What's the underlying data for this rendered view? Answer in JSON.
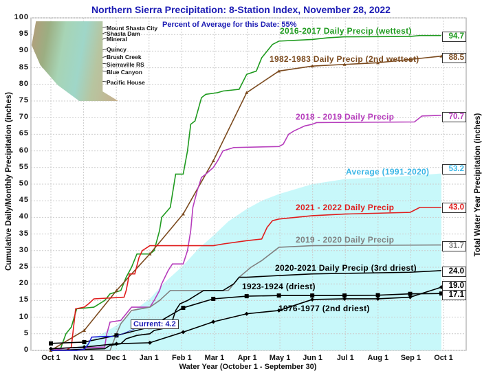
{
  "chart_data": {
    "type": "line",
    "title": "Northern Sierra Precipitation: 8-Station Index, November 28, 2022",
    "subtitle": "Percent of Average for this Date: 55%",
    "xlabel": "Water Year (October 1 - September 30)",
    "ylabel": "Cumulative Daily/Monthly Precipitation (inches)",
    "ylabel_right": "Total Water Year Precipitation (inches)",
    "x_ticks": [
      "Oct 1",
      "Nov 1",
      "Dec 1",
      "Jan 1",
      "Feb 1",
      "Mar 1",
      "Apr 1",
      "May 1",
      "Jun 1",
      "Jul 1",
      "Aug 1",
      "Sep 1",
      "Oct 1"
    ],
    "y_ticks": [
      0,
      5,
      10,
      15,
      20,
      25,
      30,
      35,
      40,
      45,
      50,
      55,
      60,
      65,
      70,
      75,
      80,
      85,
      90,
      95,
      100
    ],
    "ylim": [
      0,
      100
    ],
    "grid": true,
    "map_stations": [
      "Mount Shasta City",
      "Shasta Dam",
      "Mineral",
      "Quincy",
      "Brush Creek",
      "Sierraville RS",
      "Blue Canyon",
      "Pacific House"
    ],
    "current_label": "Current: 4.2",
    "series": [
      {
        "name": "Average (1991-2020)",
        "color": "#c8f8fa",
        "label_color": "#3ab6e6",
        "fill": true,
        "total": "53.2",
        "points": [
          [
            "10-01",
            0
          ],
          [
            "10-20",
            0.3
          ],
          [
            "11-01",
            2
          ],
          [
            "11-15",
            4.5
          ],
          [
            "12-01",
            7.5
          ],
          [
            "12-15",
            11.5
          ],
          [
            "01-01",
            15.5
          ],
          [
            "01-15",
            20.5
          ],
          [
            "02-01",
            25.5
          ],
          [
            "02-15",
            30.5
          ],
          [
            "03-01",
            34.5
          ],
          [
            "03-15",
            38.8
          ],
          [
            "04-01",
            42.5
          ],
          [
            "04-15",
            45
          ],
          [
            "05-01",
            47
          ],
          [
            "06-01",
            50
          ],
          [
            "07-01",
            51.5
          ],
          [
            "08-01",
            52
          ],
          [
            "09-01",
            52.5
          ],
          [
            "09-30",
            53.2
          ]
        ]
      },
      {
        "name": "2016-2017 Daily Precip (wettest)",
        "color": "#1e9a1e",
        "total": "94.7",
        "points": [
          [
            "10-01",
            0
          ],
          [
            "10-10",
            0.5
          ],
          [
            "10-15",
            5
          ],
          [
            "10-20",
            7
          ],
          [
            "10-25",
            12.5
          ],
          [
            "11-10",
            13
          ],
          [
            "11-20",
            15
          ],
          [
            "11-25",
            17
          ],
          [
            "12-05",
            18
          ],
          [
            "12-10",
            22
          ],
          [
            "12-15",
            25
          ],
          [
            "12-20",
            29
          ],
          [
            "01-01",
            29
          ],
          [
            "01-05",
            30
          ],
          [
            "01-10",
            36
          ],
          [
            "01-12",
            40
          ],
          [
            "01-20",
            43
          ],
          [
            "01-25",
            53
          ],
          [
            "02-01",
            53
          ],
          [
            "02-05",
            60
          ],
          [
            "02-08",
            68
          ],
          [
            "02-12",
            69
          ],
          [
            "02-18",
            76
          ],
          [
            "02-22",
            77
          ],
          [
            "03-05",
            77.5
          ],
          [
            "03-10",
            78
          ],
          [
            "03-25",
            78.5
          ],
          [
            "04-01",
            83
          ],
          [
            "04-10",
            84
          ],
          [
            "04-15",
            88
          ],
          [
            "04-20",
            90
          ],
          [
            "04-25",
            92
          ],
          [
            "05-01",
            93
          ],
          [
            "06-01",
            93.5
          ],
          [
            "06-15",
            94
          ],
          [
            "07-01",
            94.3
          ],
          [
            "09-01",
            94.4
          ],
          [
            "09-10",
            94.7
          ],
          [
            "09-30",
            94.7
          ]
        ]
      },
      {
        "name": "1982-1983 Daily Precip (2nd wettest)",
        "color": "#7b4a1e",
        "marker": "triangle",
        "total": "88.5",
        "points": [
          [
            "10-01",
            0
          ],
          [
            "11-01",
            6
          ],
          [
            "12-01",
            18
          ],
          [
            "01-01",
            29
          ],
          [
            "02-01",
            41
          ],
          [
            "03-01",
            57
          ],
          [
            "04-01",
            77.5
          ],
          [
            "05-01",
            84
          ],
          [
            "06-01",
            85.5
          ],
          [
            "07-01",
            86
          ],
          [
            "08-01",
            86.5
          ],
          [
            "09-01",
            87.5
          ],
          [
            "09-30",
            88.5
          ]
        ]
      },
      {
        "name": "2018 - 2019 Daily Precip",
        "color": "#b63cbc",
        "total": "70.7",
        "points": [
          [
            "10-01",
            0
          ],
          [
            "10-15",
            0.7
          ],
          [
            "11-20",
            1
          ],
          [
            "11-22",
            5
          ],
          [
            "11-25",
            8.5
          ],
          [
            "12-05",
            9
          ],
          [
            "12-10",
            11
          ],
          [
            "12-15",
            13
          ],
          [
            "01-01",
            13
          ],
          [
            "01-05",
            15
          ],
          [
            "01-10",
            18
          ],
          [
            "01-12",
            20
          ],
          [
            "01-18",
            24
          ],
          [
            "01-22",
            26
          ],
          [
            "02-01",
            26
          ],
          [
            "02-05",
            30
          ],
          [
            "02-08",
            36
          ],
          [
            "02-10",
            43
          ],
          [
            "02-14",
            48
          ],
          [
            "02-18",
            52
          ],
          [
            "02-22",
            53
          ],
          [
            "03-01",
            55
          ],
          [
            "03-05",
            57
          ],
          [
            "03-10",
            60
          ],
          [
            "03-20",
            61
          ],
          [
            "05-01",
            61.3
          ],
          [
            "05-05",
            62
          ],
          [
            "05-10",
            65
          ],
          [
            "05-15",
            66
          ],
          [
            "05-25",
            67.5
          ],
          [
            "06-01",
            68
          ],
          [
            "06-05",
            68.5
          ],
          [
            "09-05",
            68.7
          ],
          [
            "09-12",
            70.5
          ],
          [
            "09-30",
            70.7
          ]
        ]
      },
      {
        "name": "2021 - 2022 Daily Precip",
        "color": "#e01c1c",
        "total": "43.0",
        "points": [
          [
            "10-01",
            0
          ],
          [
            "10-15",
            0
          ],
          [
            "10-20",
            1
          ],
          [
            "10-24",
            12.5
          ],
          [
            "11-01",
            13
          ],
          [
            "11-05",
            14
          ],
          [
            "11-10",
            15.5
          ],
          [
            "12-08",
            16
          ],
          [
            "12-10",
            18
          ],
          [
            "12-13",
            23
          ],
          [
            "12-18",
            23
          ],
          [
            "12-22",
            28
          ],
          [
            "12-25",
            30
          ],
          [
            "01-01",
            31.5
          ],
          [
            "03-01",
            31.5
          ],
          [
            "03-10",
            32
          ],
          [
            "04-01",
            33
          ],
          [
            "04-15",
            33.5
          ],
          [
            "04-20",
            37
          ],
          [
            "04-25",
            39
          ],
          [
            "05-01",
            39.5
          ],
          [
            "06-01",
            40.5
          ],
          [
            "07-01",
            41
          ],
          [
            "09-01",
            41.5
          ],
          [
            "09-10",
            43
          ],
          [
            "09-30",
            43
          ]
        ]
      },
      {
        "name": "2019 - 2020 Daily Precip",
        "color": "#808080",
        "total": "31.7",
        "points": [
          [
            "10-01",
            0
          ],
          [
            "11-25",
            0
          ],
          [
            "12-01",
            5
          ],
          [
            "12-05",
            8
          ],
          [
            "12-15",
            12
          ],
          [
            "01-01",
            13
          ],
          [
            "01-10",
            15
          ],
          [
            "01-20",
            18
          ],
          [
            "03-15",
            18
          ],
          [
            "03-25",
            22
          ],
          [
            "04-05",
            25
          ],
          [
            "04-15",
            27
          ],
          [
            "05-01",
            31
          ],
          [
            "06-01",
            31.5
          ],
          [
            "09-30",
            31.7
          ]
        ]
      },
      {
        "name": "2020-2021 Daily Precip (3rd driest)",
        "color": "#000000",
        "total": "24.0",
        "points": [
          [
            "10-01",
            0
          ],
          [
            "11-20",
            0.5
          ],
          [
            "11-25",
            1.5
          ],
          [
            "12-05",
            2
          ],
          [
            "12-10",
            3.5
          ],
          [
            "12-20",
            4.5
          ],
          [
            "01-01",
            5
          ],
          [
            "01-05",
            6
          ],
          [
            "01-20",
            7
          ],
          [
            "01-25",
            12
          ],
          [
            "01-29",
            14
          ],
          [
            "02-05",
            15
          ],
          [
            "02-15",
            17
          ],
          [
            "02-20",
            18
          ],
          [
            "03-10",
            18
          ],
          [
            "03-15",
            19
          ],
          [
            "03-20",
            20
          ],
          [
            "03-25",
            22
          ],
          [
            "04-01",
            22
          ],
          [
            "05-01",
            22.5
          ],
          [
            "06-01",
            23
          ],
          [
            "09-01",
            23.5
          ],
          [
            "09-30",
            24
          ]
        ]
      },
      {
        "name": "1923-1924 (driest)",
        "color": "#000000",
        "marker": "square",
        "total": "17.1",
        "points": [
          [
            "10-01",
            2.1
          ],
          [
            "11-01",
            2.5
          ],
          [
            "12-01",
            4.5
          ],
          [
            "01-01",
            7
          ],
          [
            "02-01",
            12.8
          ],
          [
            "03-01",
            15.5
          ],
          [
            "04-01",
            16.3
          ],
          [
            "05-01",
            16.5
          ],
          [
            "06-01",
            16.5
          ],
          [
            "07-01",
            16.5
          ],
          [
            "08-01",
            16.6
          ],
          [
            "09-01",
            17
          ],
          [
            "09-30",
            17.1
          ]
        ]
      },
      {
        "name": "1976-1977 (2nd driest)",
        "color": "#000000",
        "marker": "diamond",
        "total": "19.0",
        "points": [
          [
            "10-01",
            0.5
          ],
          [
            "11-01",
            1
          ],
          [
            "12-01",
            2
          ],
          [
            "01-01",
            2.3
          ],
          [
            "02-01",
            5.5
          ],
          [
            "03-01",
            8.6
          ],
          [
            "04-01",
            11
          ],
          [
            "05-01",
            12
          ],
          [
            "06-01",
            15.3
          ],
          [
            "07-01",
            15.5
          ],
          [
            "08-01",
            15.5
          ],
          [
            "09-01",
            16
          ],
          [
            "09-30",
            19
          ]
        ]
      },
      {
        "name": "Current",
        "color": "#1c1cd4",
        "points": [
          [
            "10-01",
            0
          ],
          [
            "10-25",
            0
          ],
          [
            "11-01",
            0.3
          ],
          [
            "11-05",
            2
          ],
          [
            "11-08",
            4
          ],
          [
            "11-20",
            4.2
          ],
          [
            "11-28",
            4.2
          ]
        ]
      }
    ]
  }
}
